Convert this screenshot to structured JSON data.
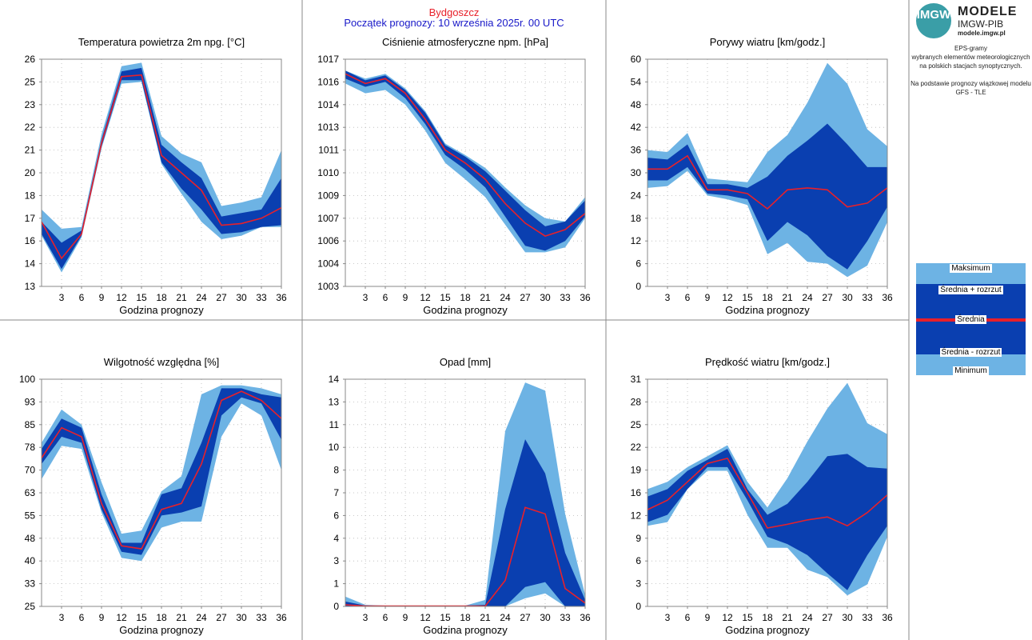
{
  "header": {
    "city": "Bydgoszcz",
    "forecast_start": "Początek prognozy: 10 września 2025r. 00 UTC"
  },
  "sidebar": {
    "logo_mark": "IMGW",
    "logo_title": "MODELE",
    "logo_subtitle": "IMGW-PIB",
    "logo_url": "modele.imgw.pl",
    "description": [
      "EPS-gramy",
      "wybranych elementów meteorologicznych",
      "na polskich stacjach  synoptycznych."
    ],
    "model_note": [
      "Na podstawie prognozy wiązkowej modelu",
      "GFS - TLE"
    ],
    "legend": {
      "max": "Maksimum",
      "mean_plus": "Średnia + rozrzut",
      "mean": "Średnia",
      "mean_minus": "Średnia - rozrzut",
      "min": "Minimum"
    }
  },
  "colors": {
    "outer_band": "#6db3e4",
    "inner_band": "#0a3fb0",
    "mean_line": "#e8202a",
    "title_city": "#e8202a",
    "title_date": "#1818c8"
  },
  "chart_data": [
    {
      "type": "area",
      "title": "Temperatura powietrza 2m npg. [°C]",
      "xlabel": "Godzina prognozy",
      "ylabel": "",
      "x": [
        0,
        3,
        6,
        9,
        12,
        15,
        18,
        21,
        24,
        27,
        30,
        33,
        36
      ],
      "xticks": [
        3,
        6,
        9,
        12,
        15,
        18,
        21,
        24,
        27,
        30,
        33,
        36
      ],
      "yticks": [
        "13",
        "14",
        "16",
        "17",
        "18",
        "20",
        "21",
        "22",
        "23",
        "25",
        "26"
      ],
      "ylim": [
        13,
        26
      ],
      "max": [
        17.4,
        16.3,
        16.4,
        21.7,
        25.6,
        25.8,
        21.6,
        20.6,
        20.1,
        17.6,
        17.8,
        18.1,
        20.8
      ],
      "mean_plus": [
        16.7,
        15.5,
        16.2,
        21.4,
        25.3,
        25.5,
        21.1,
        20.1,
        19.2,
        17.0,
        17.2,
        17.4,
        19.2
      ],
      "mean": [
        16.7,
        14.6,
        16.0,
        21.2,
        25.0,
        25.1,
        20.5,
        19.5,
        18.5,
        16.5,
        16.6,
        16.9,
        17.5
      ],
      "mean_minus": [
        16.0,
        14.0,
        15.9,
        21.0,
        24.8,
        24.8,
        20.1,
        18.6,
        17.4,
        16.0,
        16.1,
        16.4,
        16.5
      ],
      "min": [
        15.9,
        13.8,
        15.8,
        20.9,
        24.6,
        24.7,
        20.0,
        18.3,
        16.7,
        15.7,
        15.9,
        16.4,
        16.4
      ]
    },
    {
      "type": "area",
      "title": "Ciśnienie atmosferyczne npm. [hPa]",
      "xlabel": "Godzina prognozy",
      "ylabel": "",
      "x": [
        0,
        3,
        6,
        9,
        12,
        15,
        18,
        21,
        24,
        27,
        30,
        33,
        36
      ],
      "xticks": [
        3,
        6,
        9,
        12,
        15,
        18,
        21,
        24,
        27,
        30,
        33,
        36
      ],
      "yticks": [
        "1003",
        "1004",
        "1006",
        "1007",
        "1009",
        "1010",
        "1011",
        "1013",
        "1014",
        "1016",
        "1017"
      ],
      "ylim": [
        1003,
        1017
      ],
      "max": [
        1016.3,
        1015.8,
        1016.1,
        1015.2,
        1013.8,
        1011.8,
        1011.1,
        1010.3,
        1009.1,
        1008.0,
        1007.2,
        1007.0,
        1008.5
      ],
      "mean_plus": [
        1016.3,
        1015.7,
        1016.0,
        1015.1,
        1013.7,
        1011.7,
        1011.0,
        1010.1,
        1008.9,
        1007.7,
        1006.7,
        1007.0,
        1008.3
      ],
      "mean": [
        1016.1,
        1015.5,
        1015.8,
        1014.9,
        1013.3,
        1011.4,
        1010.6,
        1009.6,
        1008.1,
        1006.9,
        1006.1,
        1006.5,
        1007.5
      ],
      "mean_minus": [
        1015.8,
        1015.3,
        1015.6,
        1014.6,
        1013.0,
        1011.1,
        1010.2,
        1009.1,
        1007.3,
        1005.5,
        1005.2,
        1005.8,
        1007.3
      ],
      "min": [
        1015.5,
        1014.9,
        1015.1,
        1014.2,
        1012.6,
        1010.6,
        1009.6,
        1008.5,
        1006.8,
        1005.1,
        1005.1,
        1005.4,
        1007.2
      ]
    },
    {
      "type": "area",
      "title": "Porywy wiatru [km/godz.]",
      "xlabel": "Godzina prognozy",
      "ylabel": "",
      "x": [
        0,
        3,
        6,
        9,
        12,
        15,
        18,
        21,
        24,
        27,
        30,
        33,
        36
      ],
      "xticks": [
        3,
        6,
        9,
        12,
        15,
        18,
        21,
        24,
        27,
        30,
        33,
        36
      ],
      "yticks": [
        "0",
        "6",
        "12",
        "18",
        "24",
        "30",
        "36",
        "42",
        "48",
        "54",
        "60"
      ],
      "ylim": [
        0,
        60
      ],
      "max": [
        36,
        35.5,
        40.5,
        28.5,
        28,
        27.5,
        35.5,
        40,
        48.5,
        59,
        53.5,
        41.5,
        37
      ],
      "mean_plus": [
        34,
        33.5,
        37.5,
        27,
        27,
        26,
        29,
        34.5,
        38.5,
        43,
        37.5,
        31.5,
        31.5
      ],
      "mean": [
        31,
        31,
        34.5,
        25.5,
        25.5,
        24.5,
        20.5,
        25.5,
        26,
        25.5,
        21,
        22,
        26
      ],
      "mean_minus": [
        28,
        28,
        31.5,
        24.5,
        24,
        23,
        12,
        17,
        13.5,
        8,
        4.5,
        12,
        21
      ],
      "min": [
        26,
        26.5,
        30.5,
        24,
        23,
        21.5,
        8.5,
        11.5,
        6.5,
        6,
        2.5,
        5.5,
        17
      ]
    },
    {
      "type": "area",
      "title": "Wilgotność względna [%]",
      "xlabel": "Godzina prognozy",
      "ylabel": "",
      "x": [
        0,
        3,
        6,
        9,
        12,
        15,
        18,
        21,
        24,
        27,
        30,
        33,
        36
      ],
      "xticks": [
        3,
        6,
        9,
        12,
        15,
        18,
        21,
        24,
        27,
        30,
        33,
        36
      ],
      "yticks": [
        "25",
        "33",
        "40",
        "48",
        "55",
        "63",
        "70",
        "78",
        "85",
        "93",
        "100"
      ],
      "ylim": [
        25,
        100
      ],
      "max": [
        79,
        90,
        85,
        66,
        49,
        50,
        63,
        68,
        95,
        98,
        98,
        97,
        95
      ],
      "mean_plus": [
        77,
        87,
        84,
        62,
        46,
        46,
        62,
        64,
        79,
        97,
        97,
        95,
        94
      ],
      "mean": [
        74,
        84,
        81,
        59,
        45,
        44,
        57,
        59,
        72,
        93,
        96,
        93,
        87
      ],
      "mean_minus": [
        72,
        81,
        79,
        57,
        43,
        42,
        55,
        56,
        58,
        88,
        94,
        92,
        80
      ],
      "min": [
        67,
        78,
        77,
        56,
        41,
        40,
        51,
        53,
        53,
        81,
        92,
        88,
        70
      ]
    },
    {
      "type": "area",
      "title": "Opad [mm]",
      "xlabel": "Godzina prognozy",
      "ylabel": "",
      "x": [
        0,
        3,
        6,
        9,
        12,
        15,
        18,
        21,
        24,
        27,
        30,
        33,
        36
      ],
      "xticks": [
        3,
        6,
        9,
        12,
        15,
        18,
        21,
        24,
        27,
        30,
        33,
        36
      ],
      "yticks": [
        "0",
        "1",
        "3",
        "4",
        "6",
        "7",
        "8",
        "10",
        "11",
        "13",
        "14"
      ],
      "ylim": [
        0,
        14
      ],
      "max": [
        0.6,
        0.1,
        0.05,
        0.05,
        0.05,
        0.05,
        0.05,
        0.4,
        10.8,
        13.8,
        13.3,
        5.7,
        0.7
      ],
      "mean_plus": [
        0.3,
        0.05,
        0.05,
        0.05,
        0.05,
        0.05,
        0.05,
        0.1,
        6.0,
        10.3,
        8.2,
        3.3,
        0.4
      ],
      "mean": [
        0.1,
        0.02,
        0.02,
        0.02,
        0.02,
        0.02,
        0.02,
        0.02,
        1.6,
        6.1,
        5.7,
        1.1,
        0.2
      ],
      "mean_minus": [
        0,
        0,
        0,
        0,
        0,
        0,
        0,
        0,
        0,
        1.2,
        1.5,
        0,
        0
      ],
      "min": [
        0,
        0,
        0,
        0,
        0,
        0,
        0,
        0,
        0,
        0.5,
        0.8,
        0,
        0
      ]
    },
    {
      "type": "area",
      "title": "Prędkość wiatru [km/godz.]",
      "xlabel": "Godzina prognozy",
      "ylabel": "",
      "x": [
        0,
        3,
        6,
        9,
        12,
        15,
        18,
        21,
        24,
        27,
        30,
        33,
        36
      ],
      "xticks": [
        3,
        6,
        9,
        12,
        15,
        18,
        21,
        24,
        27,
        30,
        33,
        36
      ],
      "yticks": [
        "0",
        "3",
        "6",
        "9",
        "12",
        "16",
        "19",
        "22",
        "25",
        "28",
        "31"
      ],
      "ylim": [
        0,
        31
      ],
      "max": [
        16.0,
        17.0,
        19.0,
        20.5,
        22.0,
        17.0,
        13.5,
        17.5,
        22.5,
        27.0,
        30.5,
        25.0,
        23.5
      ],
      "mean_plus": [
        15.0,
        16.0,
        18.5,
        20.0,
        21.5,
        16.0,
        12.5,
        14.0,
        17.0,
        20.5,
        20.8,
        19.0,
        18.8
      ],
      "mean": [
        13.2,
        14.5,
        17.0,
        19.5,
        20.2,
        15.5,
        10.7,
        11.2,
        11.8,
        12.2,
        11.0,
        12.8,
        15.2
      ],
      "mean_minus": [
        11.5,
        12.5,
        16.0,
        19.0,
        19.0,
        14.5,
        9.5,
        8.5,
        7.0,
        4.5,
        2.2,
        7.0,
        11.0
      ],
      "min": [
        11.0,
        11.5,
        16.0,
        18.5,
        18.5,
        12.5,
        8.0,
        8.0,
        5.0,
        4.0,
        1.5,
        3.0,
        9.5
      ]
    }
  ]
}
